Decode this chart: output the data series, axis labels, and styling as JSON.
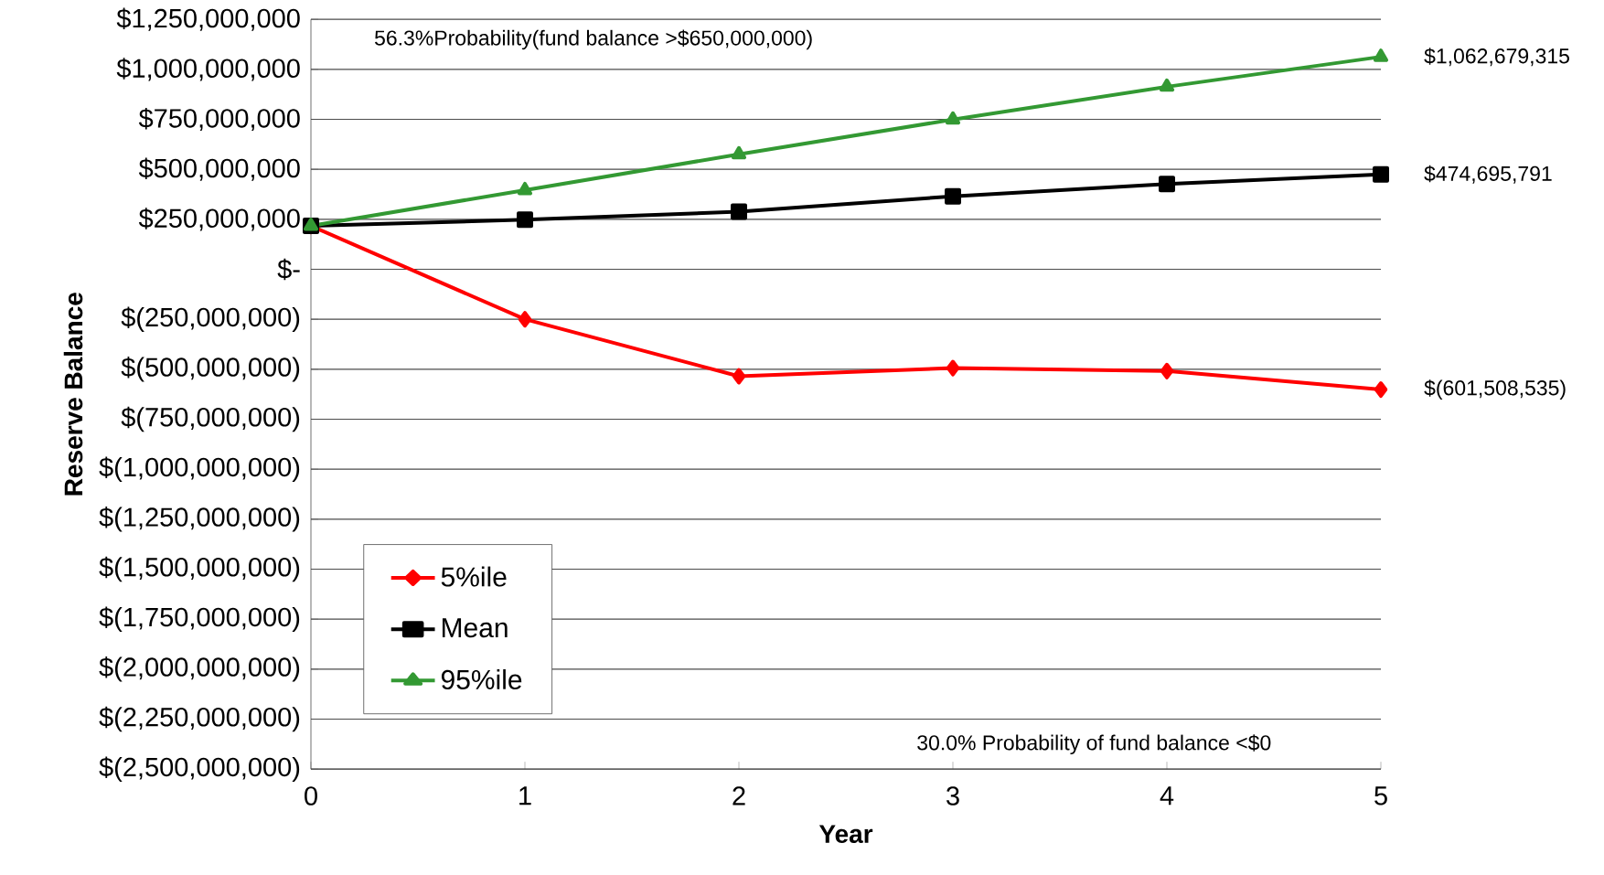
{
  "chart_data": {
    "type": "line",
    "xlabel": "Year",
    "ylabel": "Reserve  Balance",
    "x": [
      0,
      1,
      2,
      3,
      4,
      5
    ],
    "series": [
      {
        "name": "5%ile",
        "color": "#ff0000",
        "marker": "diamond",
        "values": [
          217000000,
          -250000000,
          -535000000,
          -494000000,
          -509000000,
          -601508535
        ],
        "value_labels": [
          null,
          null,
          null,
          null,
          null,
          "$(601,508,535)"
        ]
      },
      {
        "name": "Mean",
        "color": "#000000",
        "marker": "square",
        "values": [
          217000000,
          248000000,
          288000000,
          365000000,
          426000000,
          474695791
        ],
        "value_labels": [
          null,
          null,
          null,
          null,
          null,
          "$474,695,791"
        ]
      },
      {
        "name": "95%ile",
        "color": "#339933",
        "marker": "triangle",
        "values": [
          217000000,
          396000000,
          575000000,
          749000000,
          913000000,
          1062679315
        ],
        "value_labels": [
          null,
          null,
          null,
          null,
          null,
          "$1,062,679,315"
        ]
      }
    ],
    "xlim": [
      0,
      5
    ],
    "xticks": [
      0,
      1,
      2,
      3,
      4,
      5
    ],
    "ylim": [
      -2500000000,
      1250000000
    ],
    "yticks": [
      {
        "value": 1250000000,
        "label": "$1,250,000,000"
      },
      {
        "value": 1000000000,
        "label": "$1,000,000,000"
      },
      {
        "value": 750000000,
        "label": "$750,000,000"
      },
      {
        "value": 500000000,
        "label": "$500,000,000"
      },
      {
        "value": 250000000,
        "label": "$250,000,000"
      },
      {
        "value": 0,
        "label": "$-"
      },
      {
        "value": -250000000,
        "label": "$(250,000,000)"
      },
      {
        "value": -500000000,
        "label": "$(500,000,000)"
      },
      {
        "value": -750000000,
        "label": "$(750,000,000)"
      },
      {
        "value": -1000000000,
        "label": "$(1,000,000,000)"
      },
      {
        "value": -1250000000,
        "label": "$(1,250,000,000)"
      },
      {
        "value": -1500000000,
        "label": "$(1,500,000,000)"
      },
      {
        "value": -1750000000,
        "label": "$(1,750,000,000)"
      },
      {
        "value": -2000000000,
        "label": "$(2,000,000,000)"
      },
      {
        "value": -2250000000,
        "label": "$(2,250,000,000)"
      },
      {
        "value": -2500000000,
        "label": "$(2,500,000,000)"
      }
    ],
    "grid": "y",
    "legend": "bottom left",
    "line_style": "solid",
    "annotations": [
      "56.3%Probability(fund balance >$650,000,000)",
      "30.0%  Probability of fund balance <$0"
    ]
  }
}
